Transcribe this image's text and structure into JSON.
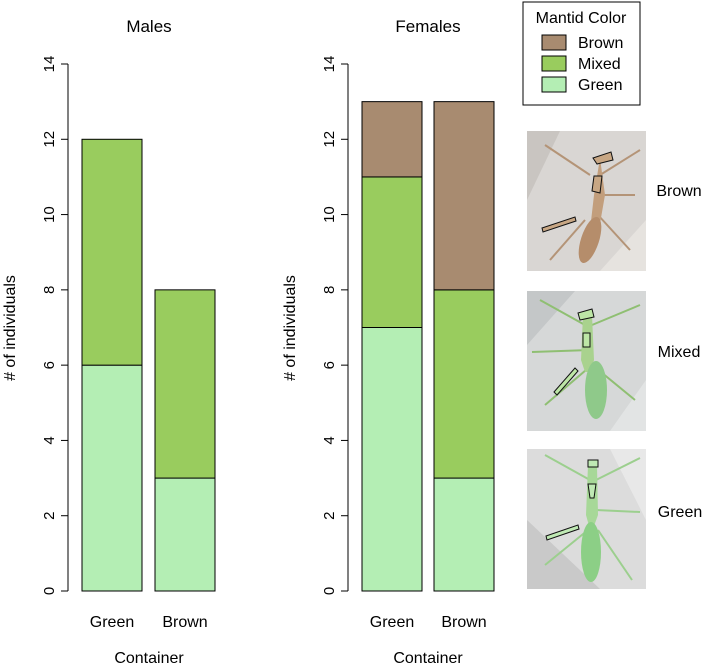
{
  "colors": {
    "Brown": "#a88b70",
    "Mixed": "#99cc5e",
    "Green": "#b4eeb4"
  },
  "legend": {
    "title": "Mantid Color",
    "entries": [
      "Brown",
      "Mixed",
      "Green"
    ]
  },
  "photos": {
    "labels": [
      "Brown",
      "Mixed",
      "Green"
    ]
  },
  "chart_data": [
    {
      "type": "bar",
      "stacked": true,
      "title": "Males",
      "xlabel": "Container",
      "ylabel": "# of individuals",
      "categories": [
        "Green",
        "Brown"
      ],
      "ylim": [
        0,
        14
      ],
      "yticks": [
        0,
        2,
        4,
        6,
        8,
        10,
        12,
        14
      ],
      "series": [
        {
          "name": "Green",
          "values": [
            6,
            3
          ]
        },
        {
          "name": "Mixed",
          "values": [
            6,
            5
          ]
        },
        {
          "name": "Brown",
          "values": [
            0,
            0
          ]
        }
      ]
    },
    {
      "type": "bar",
      "stacked": true,
      "title": "Females",
      "xlabel": "Container",
      "ylabel": "# of individuals",
      "categories": [
        "Green",
        "Brown"
      ],
      "ylim": [
        0,
        14
      ],
      "yticks": [
        0,
        2,
        4,
        6,
        8,
        10,
        12,
        14
      ],
      "series": [
        {
          "name": "Green",
          "values": [
            7,
            3
          ]
        },
        {
          "name": "Mixed",
          "values": [
            4,
            5
          ]
        },
        {
          "name": "Brown",
          "values": [
            2,
            5
          ]
        }
      ]
    }
  ]
}
